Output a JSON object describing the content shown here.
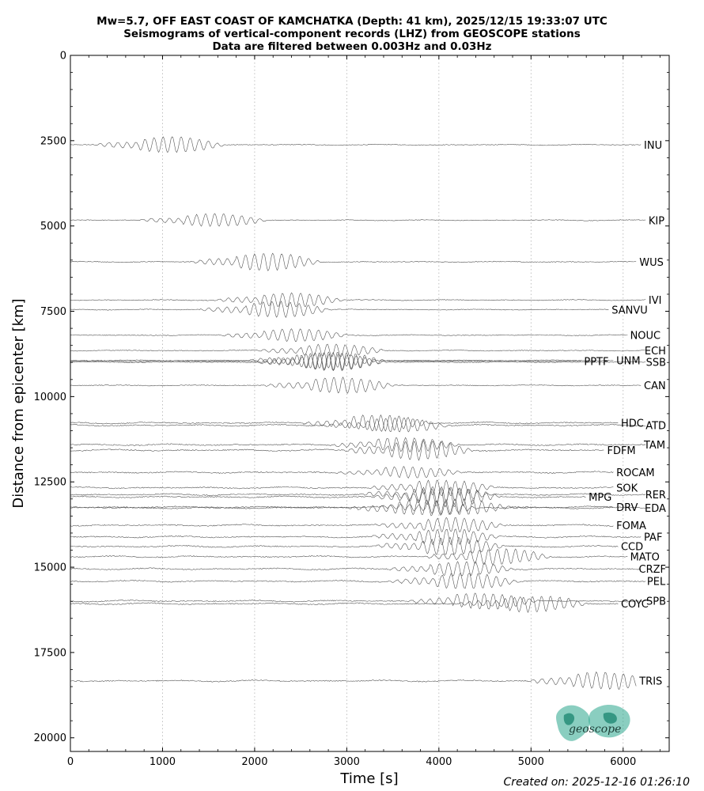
{
  "chart_data": {
    "type": "line",
    "title": [
      "Mw=5.7, OFF EAST COAST OF KAMCHATKA (Depth: 41 km), 2025/12/15 19:33:07 UTC",
      "Seismograms of vertical-component records (LHZ) from GEOSCOPE stations",
      "Data are filtered between 0.003Hz and 0.03Hz"
    ],
    "xlabel": "Time [s]",
    "ylabel": "Distance from epicenter [km]",
    "xlim": [
      0,
      6500
    ],
    "ylim": [
      20400,
      0
    ],
    "x_ticks": [
      0,
      1000,
      2000,
      3000,
      4000,
      5000,
      6000
    ],
    "y_ticks": [
      0,
      2500,
      5000,
      7500,
      10000,
      12500,
      15000,
      17500,
      20000
    ],
    "grid": "vertical dotted lines at x ticks",
    "trace_color": "#555555",
    "stations": [
      {
        "name": "INU",
        "distance": 2630,
        "end": 6200,
        "arrival": 750,
        "amp": 1.0
      },
      {
        "name": "KIP",
        "distance": 4840,
        "end": 6250,
        "arrival": 1220,
        "amp": 0.8
      },
      {
        "name": "WUS",
        "distance": 6060,
        "end": 6150,
        "arrival": 1800,
        "amp": 1.1
      },
      {
        "name": "IVI",
        "distance": 7180,
        "end": 6250,
        "arrival": 2050,
        "amp": 0.9
      },
      {
        "name": "SANVU",
        "distance": 7460,
        "end": 5850,
        "arrival": 1900,
        "amp": 1.0
      },
      {
        "name": "NOUC",
        "distance": 8210,
        "end": 6050,
        "arrival": 2100,
        "amp": 0.8
      },
      {
        "name": "ECH",
        "distance": 8660,
        "end": 6250,
        "arrival": 2500,
        "amp": 0.8
      },
      {
        "name": "PPTF",
        "distance": 8970,
        "end": 5550,
        "arrival": 2500,
        "amp": 1.2
      },
      {
        "name": "UNM",
        "distance": 8950,
        "end": 5900,
        "arrival": 2400,
        "amp": 1.0
      },
      {
        "name": "SSB",
        "distance": 9000,
        "end": 6250,
        "arrival": 2500,
        "amp": 1.0
      },
      {
        "name": "CAN",
        "distance": 9680,
        "end": 6200,
        "arrival": 2600,
        "amp": 1.0
      },
      {
        "name": "HDC",
        "distance": 10780,
        "end": 5950,
        "arrival": 3000,
        "amp": 1.0
      },
      {
        "name": "ATD",
        "distance": 10850,
        "end": 6250,
        "arrival": 3200,
        "amp": 0.9
      },
      {
        "name": "TAM",
        "distance": 11420,
        "end": 6250,
        "arrival": 3300,
        "amp": 0.9
      },
      {
        "name": "FDFM",
        "distance": 11580,
        "end": 5800,
        "arrival": 3450,
        "amp": 1.2
      },
      {
        "name": "ROCAM",
        "distance": 12230,
        "end": 5900,
        "arrival": 3350,
        "amp": 0.7
      },
      {
        "name": "SOK",
        "distance": 12680,
        "end": 5900,
        "arrival": 3700,
        "amp": 1.0
      },
      {
        "name": "RER",
        "distance": 12880,
        "end": 6250,
        "arrival": 3650,
        "amp": 1.0
      },
      {
        "name": "MPG",
        "distance": 12950,
        "end": 5600,
        "arrival": 3750,
        "amp": 1.2
      },
      {
        "name": "DRV",
        "distance": 13250,
        "end": 5900,
        "arrival": 3850,
        "amp": 1.0
      },
      {
        "name": "EDA",
        "distance": 13270,
        "end": 6250,
        "arrival": 3500,
        "amp": 1.0
      },
      {
        "name": "FOMA",
        "distance": 13780,
        "end": 5900,
        "arrival": 3800,
        "amp": 0.9
      },
      {
        "name": "PAF",
        "distance": 14120,
        "end": 6200,
        "arrival": 3750,
        "amp": 1.0
      },
      {
        "name": "CCD",
        "distance": 14400,
        "end": 5950,
        "arrival": 3800,
        "amp": 1.1
      },
      {
        "name": "MATO",
        "distance": 14700,
        "end": 6050,
        "arrival": 4300,
        "amp": 1.0
      },
      {
        "name": "CRZF",
        "distance": 15060,
        "end": 6200,
        "arrival": 3900,
        "amp": 0.9
      },
      {
        "name": "PEL",
        "distance": 15420,
        "end": 6250,
        "arrival": 3950,
        "amp": 1.0
      },
      {
        "name": "COYC",
        "distance": 16080,
        "end": 5950,
        "arrival": 4700,
        "amp": 1.0
      },
      {
        "name": "SPB",
        "distance": 16000,
        "end": 6250,
        "arrival": 4150,
        "amp": 1.0
      },
      {
        "name": "TRIS",
        "distance": 18340,
        "end": 6150,
        "arrival": 5450,
        "amp": 1.1
      }
    ]
  },
  "logo": {
    "text": "geoscope",
    "color": "#2aa58c"
  },
  "footer": {
    "created": "Created on: 2025-12-16 01:26:10"
  }
}
